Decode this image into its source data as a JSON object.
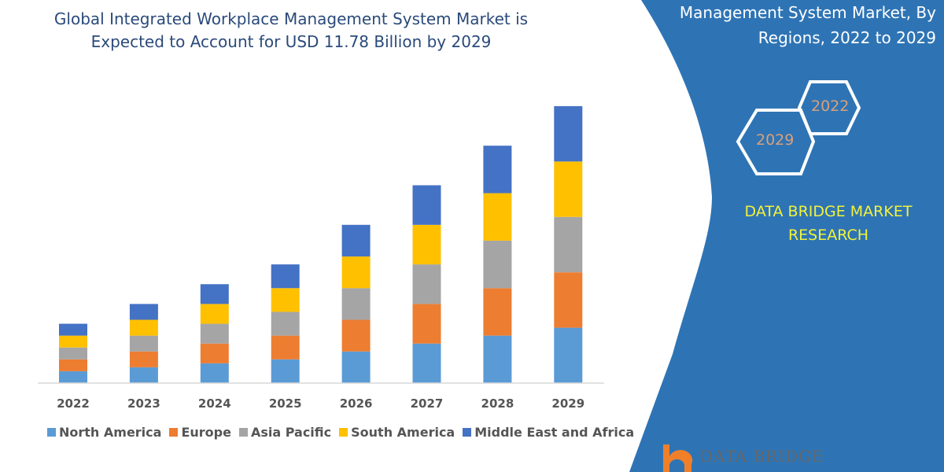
{
  "header": {
    "title_line1": "Global Integrated Workplace Management System Market is",
    "title_line2": "Expected to Account for USD 11.78 Billion by 2029"
  },
  "side_panel": {
    "title_line1": "Management System Market, By",
    "title_line2": "Regions, 2022 to 2029",
    "hex_start": "2022",
    "hex_end": "2029",
    "brand_line1": "DATA BRIDGE MARKET",
    "brand_line2": "RESEARCH",
    "logo_text": "DATA BRIDGE",
    "panel_color": "#2e74b5",
    "brand_color": "#f2f23a"
  },
  "chart_data": {
    "type": "bar",
    "stacked": true,
    "categories": [
      "2022",
      "2023",
      "2024",
      "2025",
      "2026",
      "2027",
      "2028",
      "2029"
    ],
    "series": [
      {
        "name": "North America",
        "color": "#5b9bd5",
        "values": [
          1.5,
          2,
          2.5,
          3,
          4,
          5,
          6,
          7
        ]
      },
      {
        "name": "Europe",
        "color": "#ed7d31",
        "values": [
          1.5,
          2,
          2.5,
          3,
          4,
          5,
          6,
          7
        ]
      },
      {
        "name": "Asia Pacific",
        "color": "#a5a5a5",
        "values": [
          1.5,
          2,
          2.5,
          3,
          4,
          5,
          6,
          7
        ]
      },
      {
        "name": "South America",
        "color": "#ffc000",
        "values": [
          1.5,
          2,
          2.5,
          3,
          4,
          5,
          6,
          7
        ]
      },
      {
        "name": "Middle East and Africa",
        "color": "#4472c4",
        "values": [
          1.5,
          2,
          2.5,
          3,
          4,
          5,
          6,
          7
        ]
      }
    ],
    "legend_position": "bottom",
    "grid": false,
    "y_axis_shown": false
  }
}
